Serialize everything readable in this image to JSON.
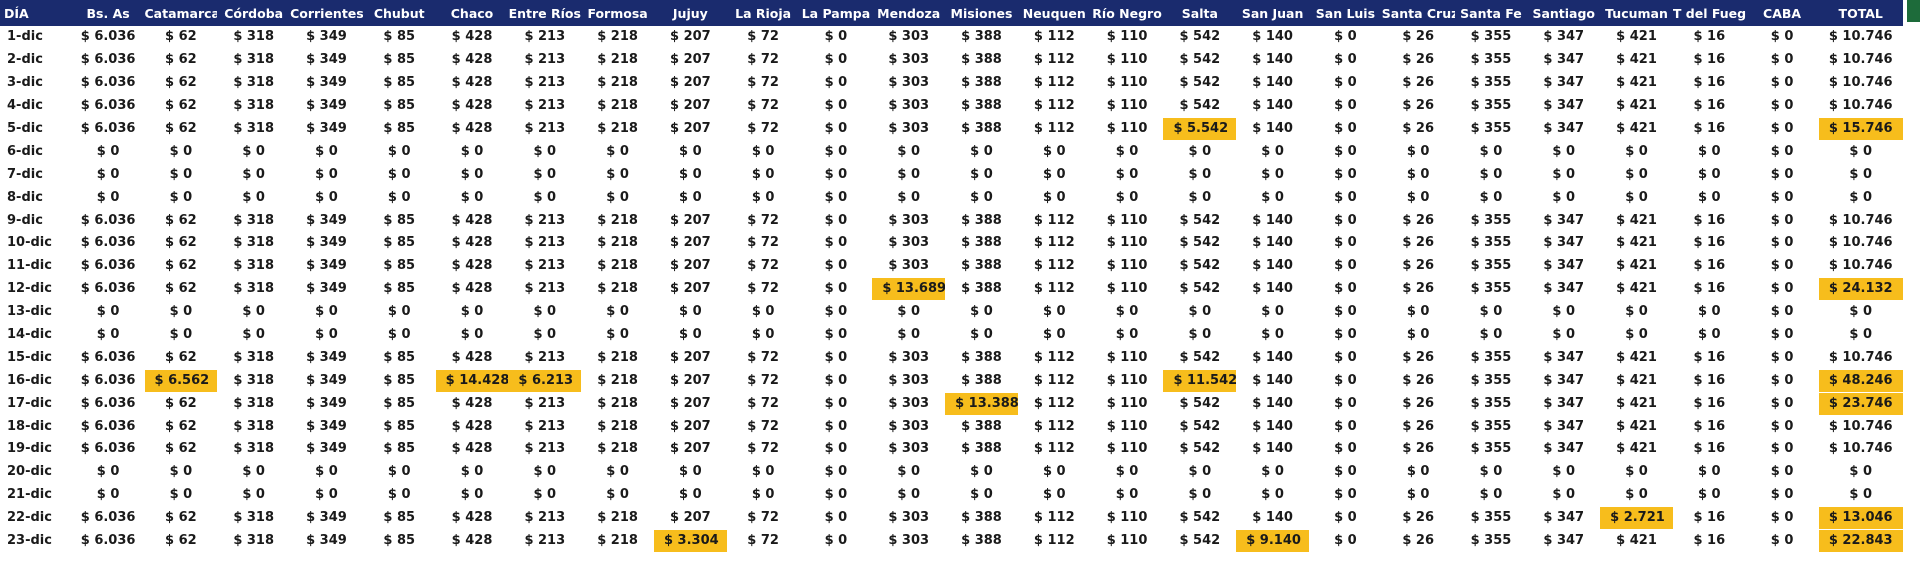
{
  "headers": [
    "DÍA",
    "Bs. As",
    "Catamarca",
    "Córdoba",
    "Corrientes",
    "Chubut",
    "Chaco",
    "Entre Ríos",
    "Formosa",
    "Jujuy",
    "La Rioja",
    "La Pampa",
    "Mendoza",
    "Misiones",
    "Neuquen",
    "Río Negro",
    "Salta",
    "San Juan",
    "San Luis",
    "Santa Cruz",
    "Santa Fe",
    "Santiago",
    "Tucuman",
    "T del Fuego",
    "CABA",
    "TOTAL"
  ],
  "highlight_color": "#f7bd1c",
  "header_color": "#1a2b6e",
  "rows": [
    [
      "1-dic",
      "$ 6.036",
      "$ 62",
      "$ 318",
      "$ 349",
      "$ 85",
      "$ 428",
      "$ 213",
      "$ 218",
      "$ 207",
      "$ 72",
      "$ 0",
      "$ 303",
      "$ 388",
      "$ 112",
      "$ 110",
      "$ 542",
      "$ 140",
      "$ 0",
      "$ 26",
      "$ 355",
      "$ 347",
      "$ 421",
      "$ 16",
      "$ 0",
      "$ 10.746"
    ],
    [
      "2-dic",
      "$ 6.036",
      "$ 62",
      "$ 318",
      "$ 349",
      "$ 85",
      "$ 428",
      "$ 213",
      "$ 218",
      "$ 207",
      "$ 72",
      "$ 0",
      "$ 303",
      "$ 388",
      "$ 112",
      "$ 110",
      "$ 542",
      "$ 140",
      "$ 0",
      "$ 26",
      "$ 355",
      "$ 347",
      "$ 421",
      "$ 16",
      "$ 0",
      "$ 10.746"
    ],
    [
      "3-dic",
      "$ 6.036",
      "$ 62",
      "$ 318",
      "$ 349",
      "$ 85",
      "$ 428",
      "$ 213",
      "$ 218",
      "$ 207",
      "$ 72",
      "$ 0",
      "$ 303",
      "$ 388",
      "$ 112",
      "$ 110",
      "$ 542",
      "$ 140",
      "$ 0",
      "$ 26",
      "$ 355",
      "$ 347",
      "$ 421",
      "$ 16",
      "$ 0",
      "$ 10.746"
    ],
    [
      "4-dic",
      "$ 6.036",
      "$ 62",
      "$ 318",
      "$ 349",
      "$ 85",
      "$ 428",
      "$ 213",
      "$ 218",
      "$ 207",
      "$ 72",
      "$ 0",
      "$ 303",
      "$ 388",
      "$ 112",
      "$ 110",
      "$ 542",
      "$ 140",
      "$ 0",
      "$ 26",
      "$ 355",
      "$ 347",
      "$ 421",
      "$ 16",
      "$ 0",
      "$ 10.746"
    ],
    [
      "5-dic",
      "$ 6.036",
      "$ 62",
      "$ 318",
      "$ 349",
      "$ 85",
      "$ 428",
      "$ 213",
      "$ 218",
      "$ 207",
      "$ 72",
      "$ 0",
      "$ 303",
      "$ 388",
      "$ 112",
      "$ 110",
      "$ 5.542",
      "$ 140",
      "$ 0",
      "$ 26",
      "$ 355",
      "$ 347",
      "$ 421",
      "$ 16",
      "$ 0",
      "$ 15.746"
    ],
    [
      "6-dic",
      "$ 0",
      "$ 0",
      "$ 0",
      "$ 0",
      "$ 0",
      "$ 0",
      "$ 0",
      "$ 0",
      "$ 0",
      "$ 0",
      "$ 0",
      "$ 0",
      "$ 0",
      "$ 0",
      "$ 0",
      "$ 0",
      "$ 0",
      "$ 0",
      "$ 0",
      "$ 0",
      "$ 0",
      "$ 0",
      "$ 0",
      "$ 0",
      "$ 0"
    ],
    [
      "7-dic",
      "$ 0",
      "$ 0",
      "$ 0",
      "$ 0",
      "$ 0",
      "$ 0",
      "$ 0",
      "$ 0",
      "$ 0",
      "$ 0",
      "$ 0",
      "$ 0",
      "$ 0",
      "$ 0",
      "$ 0",
      "$ 0",
      "$ 0",
      "$ 0",
      "$ 0",
      "$ 0",
      "$ 0",
      "$ 0",
      "$ 0",
      "$ 0",
      "$ 0"
    ],
    [
      "8-dic",
      "$ 0",
      "$ 0",
      "$ 0",
      "$ 0",
      "$ 0",
      "$ 0",
      "$ 0",
      "$ 0",
      "$ 0",
      "$ 0",
      "$ 0",
      "$ 0",
      "$ 0",
      "$ 0",
      "$ 0",
      "$ 0",
      "$ 0",
      "$ 0",
      "$ 0",
      "$ 0",
      "$ 0",
      "$ 0",
      "$ 0",
      "$ 0",
      "$ 0"
    ],
    [
      "9-dic",
      "$ 6.036",
      "$ 62",
      "$ 318",
      "$ 349",
      "$ 85",
      "$ 428",
      "$ 213",
      "$ 218",
      "$ 207",
      "$ 72",
      "$ 0",
      "$ 303",
      "$ 388",
      "$ 112",
      "$ 110",
      "$ 542",
      "$ 140",
      "$ 0",
      "$ 26",
      "$ 355",
      "$ 347",
      "$ 421",
      "$ 16",
      "$ 0",
      "$ 10.746"
    ],
    [
      "10-dic",
      "$ 6.036",
      "$ 62",
      "$ 318",
      "$ 349",
      "$ 85",
      "$ 428",
      "$ 213",
      "$ 218",
      "$ 207",
      "$ 72",
      "$ 0",
      "$ 303",
      "$ 388",
      "$ 112",
      "$ 110",
      "$ 542",
      "$ 140",
      "$ 0",
      "$ 26",
      "$ 355",
      "$ 347",
      "$ 421",
      "$ 16",
      "$ 0",
      "$ 10.746"
    ],
    [
      "11-dic",
      "$ 6.036",
      "$ 62",
      "$ 318",
      "$ 349",
      "$ 85",
      "$ 428",
      "$ 213",
      "$ 218",
      "$ 207",
      "$ 72",
      "$ 0",
      "$ 303",
      "$ 388",
      "$ 112",
      "$ 110",
      "$ 542",
      "$ 140",
      "$ 0",
      "$ 26",
      "$ 355",
      "$ 347",
      "$ 421",
      "$ 16",
      "$ 0",
      "$ 10.746"
    ],
    [
      "12-dic",
      "$ 6.036",
      "$ 62",
      "$ 318",
      "$ 349",
      "$ 85",
      "$ 428",
      "$ 213",
      "$ 218",
      "$ 207",
      "$ 72",
      "$ 0",
      "$ 13.689",
      "$ 388",
      "$ 112",
      "$ 110",
      "$ 542",
      "$ 140",
      "$ 0",
      "$ 26",
      "$ 355",
      "$ 347",
      "$ 421",
      "$ 16",
      "$ 0",
      "$ 24.132"
    ],
    [
      "13-dic",
      "$ 0",
      "$ 0",
      "$ 0",
      "$ 0",
      "$ 0",
      "$ 0",
      "$ 0",
      "$ 0",
      "$ 0",
      "$ 0",
      "$ 0",
      "$ 0",
      "$ 0",
      "$ 0",
      "$ 0",
      "$ 0",
      "$ 0",
      "$ 0",
      "$ 0",
      "$ 0",
      "$ 0",
      "$ 0",
      "$ 0",
      "$ 0",
      "$ 0"
    ],
    [
      "14-dic",
      "$ 0",
      "$ 0",
      "$ 0",
      "$ 0",
      "$ 0",
      "$ 0",
      "$ 0",
      "$ 0",
      "$ 0",
      "$ 0",
      "$ 0",
      "$ 0",
      "$ 0",
      "$ 0",
      "$ 0",
      "$ 0",
      "$ 0",
      "$ 0",
      "$ 0",
      "$ 0",
      "$ 0",
      "$ 0",
      "$ 0",
      "$ 0",
      "$ 0"
    ],
    [
      "15-dic",
      "$ 6.036",
      "$ 62",
      "$ 318",
      "$ 349",
      "$ 85",
      "$ 428",
      "$ 213",
      "$ 218",
      "$ 207",
      "$ 72",
      "$ 0",
      "$ 303",
      "$ 388",
      "$ 112",
      "$ 110",
      "$ 542",
      "$ 140",
      "$ 0",
      "$ 26",
      "$ 355",
      "$ 347",
      "$ 421",
      "$ 16",
      "$ 0",
      "$ 10.746"
    ],
    [
      "16-dic",
      "$ 6.036",
      "$ 6.562",
      "$ 318",
      "$ 349",
      "$ 85",
      "$ 14.428",
      "$ 6.213",
      "$ 218",
      "$ 207",
      "$ 72",
      "$ 0",
      "$ 303",
      "$ 388",
      "$ 112",
      "$ 110",
      "$ 11.542",
      "$ 140",
      "$ 0",
      "$ 26",
      "$ 355",
      "$ 347",
      "$ 421",
      "$ 16",
      "$ 0",
      "$ 48.246"
    ],
    [
      "17-dic",
      "$ 6.036",
      "$ 62",
      "$ 318",
      "$ 349",
      "$ 85",
      "$ 428",
      "$ 213",
      "$ 218",
      "$ 207",
      "$ 72",
      "$ 0",
      "$ 303",
      "$ 13.388",
      "$ 112",
      "$ 110",
      "$ 542",
      "$ 140",
      "$ 0",
      "$ 26",
      "$ 355",
      "$ 347",
      "$ 421",
      "$ 16",
      "$ 0",
      "$ 23.746"
    ],
    [
      "18-dic",
      "$ 6.036",
      "$ 62",
      "$ 318",
      "$ 349",
      "$ 85",
      "$ 428",
      "$ 213",
      "$ 218",
      "$ 207",
      "$ 72",
      "$ 0",
      "$ 303",
      "$ 388",
      "$ 112",
      "$ 110",
      "$ 542",
      "$ 140",
      "$ 0",
      "$ 26",
      "$ 355",
      "$ 347",
      "$ 421",
      "$ 16",
      "$ 0",
      "$ 10.746"
    ],
    [
      "19-dic",
      "$ 6.036",
      "$ 62",
      "$ 318",
      "$ 349",
      "$ 85",
      "$ 428",
      "$ 213",
      "$ 218",
      "$ 207",
      "$ 72",
      "$ 0",
      "$ 303",
      "$ 388",
      "$ 112",
      "$ 110",
      "$ 542",
      "$ 140",
      "$ 0",
      "$ 26",
      "$ 355",
      "$ 347",
      "$ 421",
      "$ 16",
      "$ 0",
      "$ 10.746"
    ],
    [
      "20-dic",
      "$ 0",
      "$ 0",
      "$ 0",
      "$ 0",
      "$ 0",
      "$ 0",
      "$ 0",
      "$ 0",
      "$ 0",
      "$ 0",
      "$ 0",
      "$ 0",
      "$ 0",
      "$ 0",
      "$ 0",
      "$ 0",
      "$ 0",
      "$ 0",
      "$ 0",
      "$ 0",
      "$ 0",
      "$ 0",
      "$ 0",
      "$ 0",
      "$ 0"
    ],
    [
      "21-dic",
      "$ 0",
      "$ 0",
      "$ 0",
      "$ 0",
      "$ 0",
      "$ 0",
      "$ 0",
      "$ 0",
      "$ 0",
      "$ 0",
      "$ 0",
      "$ 0",
      "$ 0",
      "$ 0",
      "$ 0",
      "$ 0",
      "$ 0",
      "$ 0",
      "$ 0",
      "$ 0",
      "$ 0",
      "$ 0",
      "$ 0",
      "$ 0",
      "$ 0"
    ],
    [
      "22-dic",
      "$ 6.036",
      "$ 62",
      "$ 318",
      "$ 349",
      "$ 85",
      "$ 428",
      "$ 213",
      "$ 218",
      "$ 207",
      "$ 72",
      "$ 0",
      "$ 303",
      "$ 388",
      "$ 112",
      "$ 110",
      "$ 542",
      "$ 140",
      "$ 0",
      "$ 26",
      "$ 355",
      "$ 347",
      "$ 2.721",
      "$ 16",
      "$ 0",
      "$ 13.046"
    ],
    [
      "23-dic",
      "$ 6.036",
      "$ 62",
      "$ 318",
      "$ 349",
      "$ 85",
      "$ 428",
      "$ 213",
      "$ 218",
      "$ 3.304",
      "$ 72",
      "$ 0",
      "$ 303",
      "$ 388",
      "$ 112",
      "$ 110",
      "$ 542",
      "$ 9.140",
      "$ 0",
      "$ 26",
      "$ 355",
      "$ 347",
      "$ 421",
      "$ 16",
      "$ 0",
      "$ 22.843"
    ]
  ],
  "highlights": [
    [
      4,
      16
    ],
    [
      4,
      25
    ],
    [
      11,
      12
    ],
    [
      11,
      25
    ],
    [
      15,
      2
    ],
    [
      15,
      6
    ],
    [
      15,
      7
    ],
    [
      15,
      16
    ],
    [
      15,
      25
    ],
    [
      16,
      13
    ],
    [
      16,
      25
    ],
    [
      21,
      22
    ],
    [
      21,
      25
    ],
    [
      22,
      9
    ],
    [
      22,
      17
    ],
    [
      22,
      25
    ]
  ]
}
